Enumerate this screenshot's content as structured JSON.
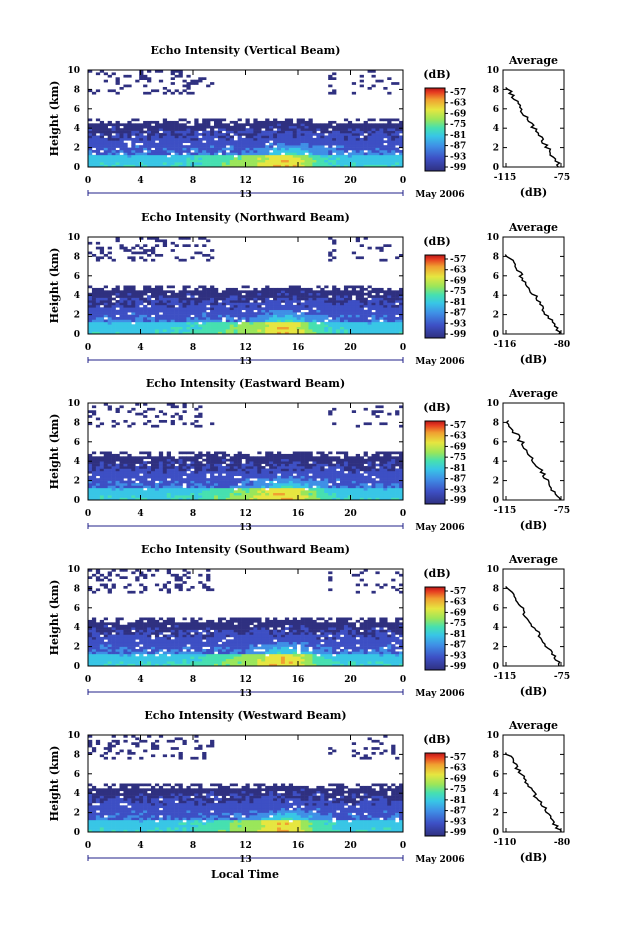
{
  "chart_data": [
    {
      "type": "heatmap",
      "title": "Echo Intensity (Vertical Beam)",
      "ylabel": "Height (km)",
      "ylim": [
        0,
        10
      ],
      "x_ticks": [
        "0",
        "4",
        "8",
        "12",
        "16",
        "20",
        "0"
      ],
      "date_label": "13",
      "month_label": "May 2006",
      "colorbar_unit": "(dB)",
      "colorbar_ticks": [
        "-57",
        "-63",
        "-69",
        "-75",
        "-81",
        "-87",
        "-93",
        "-99"
      ],
      "average_panel": {
        "title": "Average",
        "xlabel": "(dB)",
        "x_ticks": [
          "-115",
          "-75"
        ],
        "xlim": [
          -115,
          -75
        ],
        "ylim": [
          0,
          10
        ],
        "y_ticks": [
          "0",
          "2",
          "4",
          "6",
          "8",
          "10"
        ]
      }
    },
    {
      "type": "heatmap",
      "title": "Echo Intensity (Northward Beam)",
      "ylabel": "Height (km)",
      "ylim": [
        0,
        10
      ],
      "x_ticks": [
        "0",
        "4",
        "8",
        "12",
        "16",
        "20",
        "0"
      ],
      "date_label": "13",
      "month_label": "May 2006",
      "colorbar_unit": "(dB)",
      "colorbar_ticks": [
        "-57",
        "-63",
        "-69",
        "-75",
        "-81",
        "-87",
        "-93",
        "-99"
      ],
      "average_panel": {
        "title": "Average",
        "xlabel": "(dB)",
        "x_ticks": [
          "-116",
          "-80"
        ],
        "xlim": [
          -116,
          -80
        ],
        "ylim": [
          0,
          10
        ],
        "y_ticks": [
          "0",
          "2",
          "4",
          "6",
          "8",
          "10"
        ]
      }
    },
    {
      "type": "heatmap",
      "title": "Echo Intensity (Eastward Beam)",
      "ylabel": "Height (km)",
      "ylim": [
        0,
        10
      ],
      "x_ticks": [
        "0",
        "4",
        "8",
        "12",
        "16",
        "20",
        "0"
      ],
      "date_label": "13",
      "month_label": "May 2006",
      "colorbar_unit": "(dB)",
      "colorbar_ticks": [
        "-57",
        "-63",
        "-69",
        "-75",
        "-81",
        "-87",
        "-93",
        "-99"
      ],
      "average_panel": {
        "title": "Average",
        "xlabel": "(dB)",
        "x_ticks": [
          "-115",
          "-75"
        ],
        "xlim": [
          -115,
          -75
        ],
        "ylim": [
          0,
          10
        ],
        "y_ticks": [
          "0",
          "2",
          "4",
          "6",
          "8",
          "10"
        ]
      }
    },
    {
      "type": "heatmap",
      "title": "Echo Intensity (Southward Beam)",
      "ylabel": "Height (km)",
      "ylim": [
        0,
        10
      ],
      "x_ticks": [
        "0",
        "4",
        "8",
        "12",
        "16",
        "20",
        "0"
      ],
      "date_label": "13",
      "month_label": "May 2006",
      "colorbar_unit": "(dB)",
      "colorbar_ticks": [
        "-57",
        "-63",
        "-69",
        "-75",
        "-81",
        "-87",
        "-93",
        "-99"
      ],
      "average_panel": {
        "title": "Average",
        "xlabel": "(dB)",
        "x_ticks": [
          "-115",
          "-75"
        ],
        "xlim": [
          -115,
          -75
        ],
        "ylim": [
          0,
          10
        ],
        "y_ticks": [
          "0",
          "2",
          "4",
          "6",
          "8",
          "10"
        ]
      }
    },
    {
      "type": "heatmap",
      "title": "Echo Intensity (Westward Beam)",
      "ylabel": "Height (km)",
      "ylim": [
        0,
        10
      ],
      "x_ticks": [
        "0",
        "4",
        "8",
        "12",
        "16",
        "20",
        "0"
      ],
      "date_label": "13",
      "month_label": "May 2006",
      "colorbar_unit": "(dB)",
      "colorbar_ticks": [
        "-57",
        "-63",
        "-69",
        "-75",
        "-81",
        "-87",
        "-93",
        "-99"
      ],
      "average_panel": {
        "title": "Average",
        "xlabel": "(dB)",
        "x_ticks": [
          "-110",
          "-80"
        ],
        "xlim": [
          -110,
          -80
        ],
        "ylim": [
          0,
          10
        ],
        "y_ticks": [
          "0",
          "2",
          "4",
          "6",
          "8",
          "10"
        ]
      }
    }
  ],
  "footer": {
    "xlabel": "Local Time"
  },
  "colors": {
    "scale": [
      "#2f3080",
      "#3d4fc4",
      "#3f8fe6",
      "#38c6e6",
      "#46e0b0",
      "#9ae65a",
      "#e6e640",
      "#f0a030",
      "#e63a20",
      "#b81818"
    ]
  }
}
